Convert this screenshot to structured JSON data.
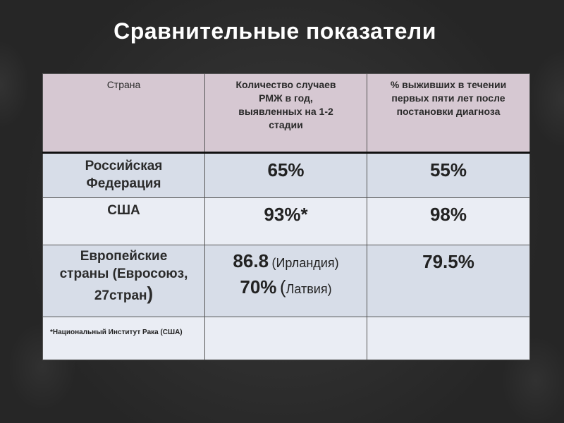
{
  "title": "Сравнительные показатели",
  "table": {
    "headers": {
      "country": "Страна",
      "cases": [
        "Количество случаев",
        "РМЖ в год,",
        "выявленных на 1-2",
        "стадии"
      ],
      "survival": [
        "% выживших в течении",
        "первых пяти лет после",
        "постановки диагноза"
      ]
    },
    "rows": [
      {
        "country": [
          "Российская",
          "Федерация"
        ],
        "cases": "65%",
        "survival": "55%"
      },
      {
        "country": [
          "США"
        ],
        "cases": "93%*",
        "survival": "98%"
      },
      {
        "country": {
          "line1": "Европейские",
          "line2": "страны (Евросоюз,",
          "line3": "27стран",
          "close": ")"
        },
        "cases": {
          "v1": "86.8",
          "t1": "(Ирландия)",
          "v2": "70%",
          "open": "(",
          "t2": "Латвия)"
        },
        "survival": "79.5%"
      }
    ],
    "footnote": "*Национальный Институт Рака (США)"
  }
}
